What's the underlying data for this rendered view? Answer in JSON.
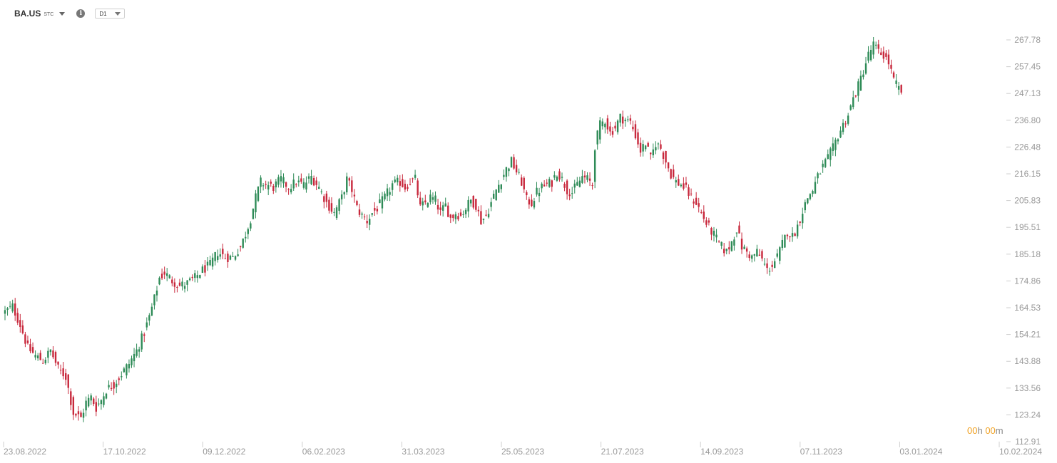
{
  "header": {
    "symbol": "BA.US",
    "symbol_type": "STC",
    "timeframe": "D1",
    "info_icon": "info-icon",
    "dropdown_icon": "chevron-down-icon"
  },
  "countdown": {
    "hours": "00",
    "hours_unit": "h",
    "minutes": "00",
    "minutes_unit": "m"
  },
  "colors": {
    "up": "#2e8b57",
    "down": "#c8283c",
    "axis_text": "#999999",
    "grid": "#e6e6e6",
    "countdown_accent": "#f0a020"
  },
  "chart_data": {
    "type": "candlestick",
    "title": "",
    "xlabel": "",
    "ylabel": "",
    "y_axis_position": "right",
    "ylim": [
      112.91,
      267.78
    ],
    "y_ticks": [
      "267.78",
      "257.45",
      "247.13",
      "236.80",
      "226.48",
      "216.15",
      "205.83",
      "195.51",
      "185.18",
      "174.86",
      "164.53",
      "154.21",
      "143.88",
      "133.56",
      "123.24",
      "112.91"
    ],
    "x_ticks": [
      "23.08.2022",
      "17.10.2022",
      "09.12.2022",
      "06.02.2023",
      "31.03.2023",
      "25.05.2023",
      "21.07.2023",
      "14.09.2023",
      "07.11.2023",
      "03.01.2024",
      "10.02.2024"
    ],
    "close_path": [
      [
        0,
        163
      ],
      [
        3,
        165
      ],
      [
        6,
        158
      ],
      [
        9,
        149
      ],
      [
        12,
        146
      ],
      [
        15,
        144
      ],
      [
        18,
        148
      ],
      [
        21,
        141
      ],
      [
        24,
        138
      ],
      [
        27,
        124
      ],
      [
        30,
        122
      ],
      [
        32,
        128
      ],
      [
        34,
        130
      ],
      [
        36,
        126
      ],
      [
        38,
        129
      ],
      [
        40,
        133
      ],
      [
        43,
        135
      ],
      [
        46,
        139
      ],
      [
        49,
        143
      ],
      [
        52,
        148
      ],
      [
        55,
        155
      ],
      [
        57,
        161
      ],
      [
        59,
        168
      ],
      [
        61,
        176
      ],
      [
        63,
        178
      ],
      [
        66,
        175
      ],
      [
        69,
        173
      ],
      [
        72,
        174
      ],
      [
        75,
        176
      ],
      [
        78,
        179
      ],
      [
        81,
        181
      ],
      [
        84,
        186
      ],
      [
        87,
        184
      ],
      [
        90,
        184
      ],
      [
        93,
        188
      ],
      [
        95,
        193
      ],
      [
        97,
        199
      ],
      [
        99,
        207
      ],
      [
        101,
        213
      ],
      [
        103,
        212
      ],
      [
        106,
        211
      ],
      [
        109,
        214
      ],
      [
        112,
        211
      ],
      [
        115,
        213
      ],
      [
        118,
        212
      ],
      [
        121,
        215
      ],
      [
        124,
        211
      ],
      [
        127,
        205
      ],
      [
        130,
        201
      ],
      [
        133,
        207
      ],
      [
        135,
        214
      ],
      [
        137,
        210
      ],
      [
        139,
        203
      ],
      [
        141,
        200
      ],
      [
        143,
        198
      ],
      [
        145,
        201
      ],
      [
        147,
        203
      ],
      [
        150,
        207
      ],
      [
        153,
        212
      ],
      [
        156,
        213
      ],
      [
        158,
        211
      ],
      [
        160,
        213
      ],
      [
        162,
        214
      ],
      [
        164,
        203
      ],
      [
        166,
        205
      ],
      [
        168,
        207
      ],
      [
        170,
        206
      ],
      [
        172,
        201
      ],
      [
        174,
        204
      ],
      [
        176,
        199
      ],
      [
        178,
        201
      ],
      [
        180,
        200
      ],
      [
        182,
        203
      ],
      [
        184,
        206
      ],
      [
        186,
        204
      ],
      [
        188,
        198
      ],
      [
        190,
        200
      ],
      [
        192,
        205
      ],
      [
        194,
        210
      ],
      [
        196,
        214
      ],
      [
        198,
        218
      ],
      [
        200,
        221
      ],
      [
        202,
        217
      ],
      [
        204,
        213
      ],
      [
        206,
        206
      ],
      [
        208,
        205
      ],
      [
        210,
        209
      ],
      [
        212,
        211
      ],
      [
        214,
        212
      ],
      [
        216,
        213
      ],
      [
        218,
        217
      ],
      [
        220,
        214
      ],
      [
        222,
        210
      ],
      [
        224,
        209
      ],
      [
        226,
        212
      ],
      [
        228,
        215
      ],
      [
        230,
        214
      ],
      [
        232,
        212
      ],
      [
        233,
        227
      ],
      [
        235,
        235
      ],
      [
        237,
        237
      ],
      [
        239,
        232
      ],
      [
        241,
        234
      ],
      [
        243,
        238
      ],
      [
        245,
        237
      ],
      [
        247,
        236
      ],
      [
        249,
        231
      ],
      [
        251,
        225
      ],
      [
        253,
        228
      ],
      [
        255,
        222
      ],
      [
        257,
        228
      ],
      [
        259,
        226
      ],
      [
        261,
        221
      ],
      [
        263,
        216
      ],
      [
        265,
        213
      ],
      [
        267,
        212
      ],
      [
        269,
        210
      ],
      [
        271,
        207
      ],
      [
        273,
        205
      ],
      [
        275,
        201
      ],
      [
        277,
        197
      ],
      [
        279,
        194
      ],
      [
        281,
        191
      ],
      [
        283,
        188
      ],
      [
        285,
        186
      ],
      [
        287,
        190
      ],
      [
        289,
        195
      ],
      [
        291,
        188
      ],
      [
        293,
        186
      ],
      [
        295,
        184
      ],
      [
        297,
        186
      ],
      [
        299,
        183
      ],
      [
        301,
        179
      ],
      [
        303,
        181
      ],
      [
        305,
        184
      ],
      [
        307,
        189
      ],
      [
        309,
        194
      ],
      [
        311,
        192
      ],
      [
        313,
        196
      ],
      [
        315,
        202
      ],
      [
        317,
        207
      ],
      [
        319,
        210
      ],
      [
        321,
        215
      ],
      [
        323,
        219
      ],
      [
        325,
        222
      ],
      [
        327,
        226
      ],
      [
        329,
        231
      ],
      [
        331,
        235
      ],
      [
        333,
        239
      ],
      [
        335,
        245
      ],
      [
        337,
        250
      ],
      [
        339,
        256
      ],
      [
        341,
        262
      ],
      [
        343,
        266
      ],
      [
        345,
        263
      ],
      [
        347,
        262
      ],
      [
        349,
        259
      ],
      [
        351,
        252
      ],
      [
        353,
        249
      ],
      [
        354,
        248
      ]
    ]
  }
}
